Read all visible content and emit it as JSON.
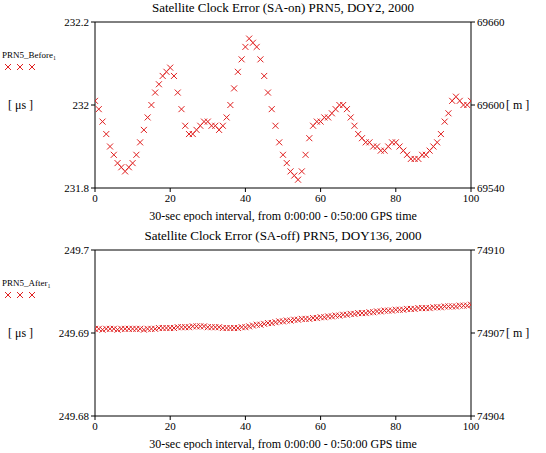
{
  "chart_data": [
    {
      "type": "scatter",
      "title": "Satellite Clock Error (SA-on) PRN5, DOY2, 2000",
      "x_label": "30-sec epoch interval, from 0:00:00 - 0:50:00 GPS time",
      "y_label": "[ μs ]",
      "y2_label": "[ m ]",
      "xlim": [
        0,
        100
      ],
      "xticks": [
        0,
        20,
        40,
        60,
        80,
        100
      ],
      "ylim": [
        231.8,
        232.2
      ],
      "yticks": [
        231.8,
        232,
        232.2
      ],
      "y2lim": [
        69540,
        69660
      ],
      "y2ticks": [
        69540,
        69600,
        69660
      ],
      "x": [
        0,
        1,
        2,
        3,
        4,
        5,
        6,
        7,
        8,
        9,
        10,
        11,
        12,
        13,
        14,
        15,
        16,
        17,
        18,
        19,
        20,
        21,
        22,
        23,
        24,
        25,
        26,
        27,
        28,
        29,
        30,
        31,
        32,
        33,
        34,
        35,
        36,
        37,
        38,
        39,
        40,
        41,
        42,
        43,
        44,
        45,
        46,
        47,
        48,
        49,
        50,
        51,
        52,
        53,
        54,
        55,
        56,
        57,
        58,
        59,
        60,
        61,
        62,
        63,
        64,
        65,
        66,
        67,
        68,
        69,
        70,
        71,
        72,
        73,
        74,
        75,
        76,
        77,
        78,
        79,
        80,
        81,
        82,
        83,
        84,
        85,
        86,
        87,
        88,
        89,
        90,
        91,
        92,
        93,
        94,
        95,
        96,
        97,
        98,
        99,
        100
      ],
      "series": [
        {
          "name": "PRN5_Before₁",
          "color": "#e02020",
          "marker": "x",
          "values": [
            232.01,
            231.99,
            231.96,
            231.93,
            231.9,
            231.88,
            231.86,
            231.85,
            231.84,
            231.85,
            231.86,
            231.88,
            231.91,
            231.94,
            231.97,
            232.0,
            232.03,
            232.05,
            232.07,
            232.08,
            232.09,
            232.07,
            232.03,
            231.99,
            231.95,
            231.93,
            231.93,
            231.94,
            231.95,
            231.96,
            231.96,
            231.95,
            231.95,
            231.94,
            231.95,
            231.97,
            232.0,
            232.04,
            232.08,
            232.11,
            232.14,
            232.16,
            232.15,
            232.14,
            232.11,
            232.07,
            232.03,
            231.99,
            231.95,
            231.91,
            231.88,
            231.86,
            231.84,
            231.83,
            231.82,
            231.84,
            231.88,
            231.92,
            231.95,
            231.96,
            231.96,
            231.97,
            231.97,
            231.98,
            231.99,
            232.0,
            232.0,
            231.99,
            231.97,
            231.95,
            231.93,
            231.92,
            231.91,
            231.91,
            231.9,
            231.9,
            231.89,
            231.89,
            231.9,
            231.91,
            231.91,
            231.9,
            231.89,
            231.88,
            231.87,
            231.87,
            231.87,
            231.88,
            231.88,
            231.89,
            231.9,
            231.91,
            231.93,
            231.96,
            231.98,
            232.01,
            232.02,
            232.01,
            232.0,
            232.0,
            232.01
          ]
        }
      ]
    },
    {
      "type": "scatter",
      "title": "Satellite Clock Error (SA-off) PRN5, DOY136, 2000",
      "x_label": "30-sec epoch interval, from 0:00:00 - 0:50:00 GPS time",
      "y_label": "[ μs ]",
      "y2_label": "[ m ]",
      "xlim": [
        0,
        100
      ],
      "xticks": [
        0,
        20,
        40,
        60,
        80,
        100
      ],
      "ylim": [
        249.68,
        249.7
      ],
      "yticks": [
        249.68,
        249.69,
        249.7
      ],
      "y2lim": [
        74904,
        74910
      ],
      "y2ticks": [
        74904,
        74907,
        74910
      ],
      "x": [
        0,
        1,
        2,
        3,
        4,
        5,
        6,
        7,
        8,
        9,
        10,
        11,
        12,
        13,
        14,
        15,
        16,
        17,
        18,
        19,
        20,
        21,
        22,
        23,
        24,
        25,
        26,
        27,
        28,
        29,
        30,
        31,
        32,
        33,
        34,
        35,
        36,
        37,
        38,
        39,
        40,
        41,
        42,
        43,
        44,
        45,
        46,
        47,
        48,
        49,
        50,
        51,
        52,
        53,
        54,
        55,
        56,
        57,
        58,
        59,
        60,
        61,
        62,
        63,
        64,
        65,
        66,
        67,
        68,
        69,
        70,
        71,
        72,
        73,
        74,
        75,
        76,
        77,
        78,
        79,
        80,
        81,
        82,
        83,
        84,
        85,
        86,
        87,
        88,
        89,
        90,
        91,
        92,
        93,
        94,
        95,
        96,
        97,
        98,
        99,
        100
      ],
      "series": [
        {
          "name": "PRN5_After₁",
          "color": "#e02020",
          "marker": "x",
          "values": [
            249.6905,
            249.6905,
            249.6904,
            249.6905,
            249.6905,
            249.6905,
            249.6904,
            249.6905,
            249.6905,
            249.6905,
            249.6905,
            249.6905,
            249.6905,
            249.6904,
            249.6905,
            249.6905,
            249.6905,
            249.6906,
            249.6906,
            249.6906,
            249.6906,
            249.6906,
            249.6907,
            249.6907,
            249.6907,
            249.6907,
            249.6908,
            249.6908,
            249.6908,
            249.6908,
            249.6907,
            249.6907,
            249.6907,
            249.6907,
            249.6906,
            249.6906,
            249.6906,
            249.6906,
            249.6906,
            249.6907,
            249.6907,
            249.6908,
            249.6909,
            249.691,
            249.691,
            249.6911,
            249.6912,
            249.6912,
            249.6913,
            249.6914,
            249.6914,
            249.6915,
            249.6915,
            249.6916,
            249.6916,
            249.6917,
            249.6917,
            249.6917,
            249.6918,
            249.6918,
            249.6919,
            249.6919,
            249.692,
            249.692,
            249.6921,
            249.6921,
            249.6922,
            249.6922,
            249.6923,
            249.6923,
            249.6924,
            249.6924,
            249.6924,
            249.6925,
            249.6925,
            249.6926,
            249.6926,
            249.6927,
            249.6927,
            249.6927,
            249.6928,
            249.6928,
            249.6928,
            249.6929,
            249.6929,
            249.6929,
            249.693,
            249.693,
            249.693,
            249.693,
            249.6931,
            249.6931,
            249.6931,
            249.6932,
            249.6932,
            249.6932,
            249.6932,
            249.6933,
            249.6933,
            249.6933,
            249.6934
          ]
        }
      ]
    }
  ]
}
